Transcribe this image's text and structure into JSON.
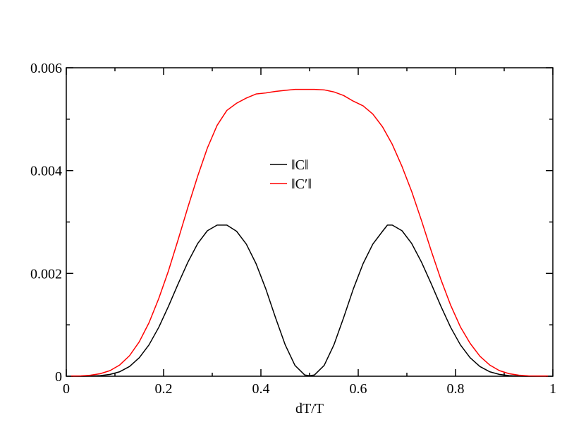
{
  "chart_data": {
    "type": "line",
    "title": "",
    "xlabel": "dT/T",
    "ylabel": "",
    "xlim": [
      0,
      1
    ],
    "ylim": [
      0,
      0.006
    ],
    "x_ticks": [
      0,
      0.2,
      0.4,
      0.6,
      0.8,
      1
    ],
    "x_tick_labels": [
      "0",
      "0.2",
      "0.4",
      "0.6",
      "0.8",
      "1"
    ],
    "y_ticks": [
      0,
      0.002,
      0.004,
      0.006
    ],
    "y_tick_labels": [
      "0",
      "0.002",
      "0.004",
      "0.006"
    ],
    "grid": false,
    "legend_position": "center",
    "series": [
      {
        "name": "‖C‖",
        "color": "#000000",
        "x": [
          0.01,
          0.03,
          0.05,
          0.07,
          0.09,
          0.11,
          0.13,
          0.15,
          0.17,
          0.19,
          0.21,
          0.23,
          0.25,
          0.27,
          0.29,
          0.31,
          0.33,
          0.35,
          0.37,
          0.39,
          0.41,
          0.43,
          0.45,
          0.47,
          0.49,
          0.5,
          0.51,
          0.53,
          0.55,
          0.57,
          0.59,
          0.61,
          0.63,
          0.65,
          0.66,
          0.67,
          0.69,
          0.71,
          0.73,
          0.75,
          0.77,
          0.79,
          0.81,
          0.83,
          0.85,
          0.87,
          0.89,
          0.91,
          0.93,
          0.95,
          0.97,
          0.99
        ],
        "values": [
          0,
          0,
          3e-06,
          1.2e-05,
          3.6e-05,
          8.8e-05,
          0.00019,
          0.00036,
          0.00061,
          0.00095,
          0.00136,
          0.0018,
          0.00222,
          0.00258,
          0.00283,
          0.00294,
          0.00294,
          0.00282,
          0.00257,
          0.00219,
          0.0017,
          0.00114,
          0.00061,
          0.00021,
          2.5e-05,
          1e-05,
          2.5e-05,
          0.00021,
          0.00061,
          0.00114,
          0.0017,
          0.00219,
          0.00257,
          0.00282,
          0.00294,
          0.00294,
          0.00283,
          0.00258,
          0.00222,
          0.0018,
          0.00136,
          0.00095,
          0.00061,
          0.00036,
          0.00019,
          8.8e-05,
          3.6e-05,
          1.2e-05,
          3e-06,
          0,
          0,
          0
        ]
      },
      {
        "name": "‖C′‖",
        "color": "#ff0000",
        "x": [
          0.01,
          0.03,
          0.05,
          0.07,
          0.09,
          0.11,
          0.13,
          0.15,
          0.17,
          0.19,
          0.21,
          0.23,
          0.25,
          0.27,
          0.29,
          0.31,
          0.33,
          0.35,
          0.37,
          0.39,
          0.41,
          0.43,
          0.45,
          0.47,
          0.49,
          0.5,
          0.51,
          0.53,
          0.55,
          0.57,
          0.59,
          0.61,
          0.63,
          0.65,
          0.67,
          0.69,
          0.71,
          0.73,
          0.75,
          0.77,
          0.79,
          0.81,
          0.83,
          0.85,
          0.87,
          0.89,
          0.91,
          0.93,
          0.95,
          0.97,
          0.99
        ],
        "values": [
          5e-06,
          7e-06,
          2e-05,
          5e-05,
          0.00011,
          0.00022,
          0.0004,
          0.00067,
          0.00104,
          0.00151,
          0.00205,
          0.00266,
          0.00329,
          0.00389,
          0.00444,
          0.00488,
          0.00517,
          0.00531,
          0.00541,
          0.00549,
          0.00551,
          0.00554,
          0.00556,
          0.00558,
          0.00558,
          0.00558,
          0.00558,
          0.00557,
          0.00553,
          0.00546,
          0.00535,
          0.00526,
          0.0051,
          0.00485,
          0.00451,
          0.00408,
          0.00359,
          0.00303,
          0.00244,
          0.00188,
          0.00138,
          0.00096,
          0.00064,
          0.00039,
          0.00022,
          0.00011,
          5e-05,
          2e-05,
          7e-06,
          5e-06,
          5e-06
        ]
      }
    ]
  }
}
